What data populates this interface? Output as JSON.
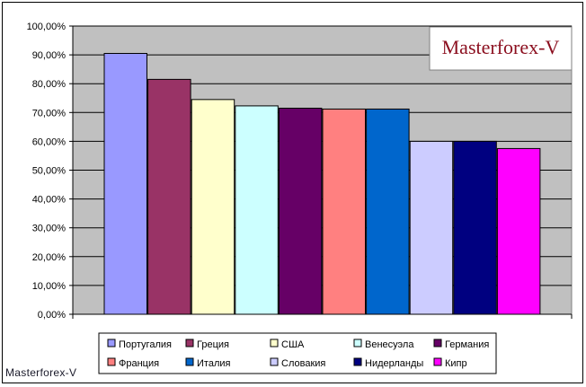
{
  "brand_box": "Masterforex-V",
  "watermark": "Masterforex-V",
  "chart_data": {
    "type": "bar",
    "ylim": [
      0,
      100
    ],
    "y_ticks": [
      "0,00%",
      "10,00%",
      "20,00%",
      "30,00%",
      "40,00%",
      "50,00%",
      "60,00%",
      "70,00%",
      "80,00%",
      "90,00%",
      "100,00%"
    ],
    "grid": true,
    "legend_position": "bottom",
    "plot_background": "#c0c0c0",
    "series": [
      {
        "name": "Португалия",
        "value": 90.5,
        "color": "#9999ff"
      },
      {
        "name": "Греция",
        "value": 81.5,
        "color": "#993366"
      },
      {
        "name": "США",
        "value": 74.5,
        "color": "#ffffcc"
      },
      {
        "name": "Венесуэла",
        "value": 72.3,
        "color": "#ccffff"
      },
      {
        "name": "Германия",
        "value": 71.5,
        "color": "#660066"
      },
      {
        "name": "Франция",
        "value": 71.2,
        "color": "#ff8080"
      },
      {
        "name": "Италия",
        "value": 71.2,
        "color": "#0066cc"
      },
      {
        "name": "Словакия",
        "value": 60.0,
        "color": "#ccccff"
      },
      {
        "name": "Нидерланды",
        "value": 60.0,
        "color": "#000080"
      },
      {
        "name": "Кипр",
        "value": 57.5,
        "color": "#ff00ff"
      }
    ]
  }
}
